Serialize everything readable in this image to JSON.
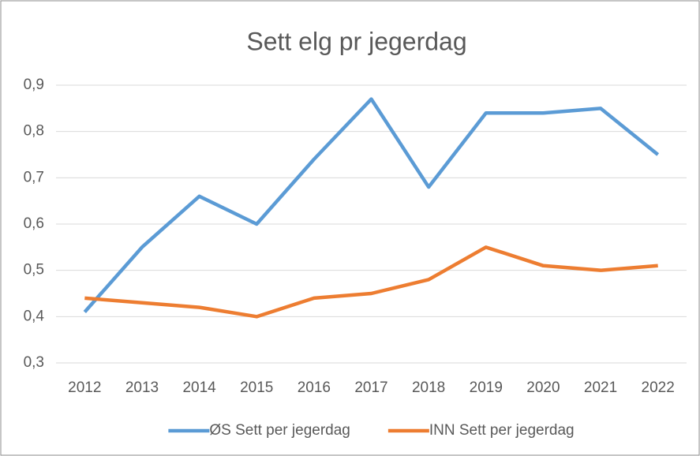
{
  "chart_data": {
    "type": "line",
    "title": "Sett elg pr jegerdag",
    "categories": [
      "2012",
      "2013",
      "2014",
      "2015",
      "2016",
      "2017",
      "2018",
      "2019",
      "2020",
      "2021",
      "2022"
    ],
    "series": [
      {
        "name": "ØS Sett per jegerdag",
        "color": "#5b9bd5",
        "values": [
          0.41,
          0.55,
          0.66,
          0.6,
          0.74,
          0.87,
          0.68,
          0.84,
          0.84,
          0.85,
          0.75
        ]
      },
      {
        "name": "INN Sett per jegerdag",
        "color": "#ed7d31",
        "values": [
          0.44,
          0.43,
          0.42,
          0.4,
          0.44,
          0.45,
          0.48,
          0.55,
          0.51,
          0.5,
          0.51
        ]
      }
    ],
    "ylim": [
      0.3,
      0.9
    ],
    "yticks": [
      {
        "value": 0.3,
        "label": "0,3"
      },
      {
        "value": 0.4,
        "label": "0,4"
      },
      {
        "value": 0.5,
        "label": "0,5"
      },
      {
        "value": 0.6,
        "label": "0,6"
      },
      {
        "value": 0.7,
        "label": "0,7"
      },
      {
        "value": 0.8,
        "label": "0,8"
      },
      {
        "value": 0.9,
        "label": "0,9"
      }
    ],
    "grid": true,
    "legend": "bottom"
  }
}
